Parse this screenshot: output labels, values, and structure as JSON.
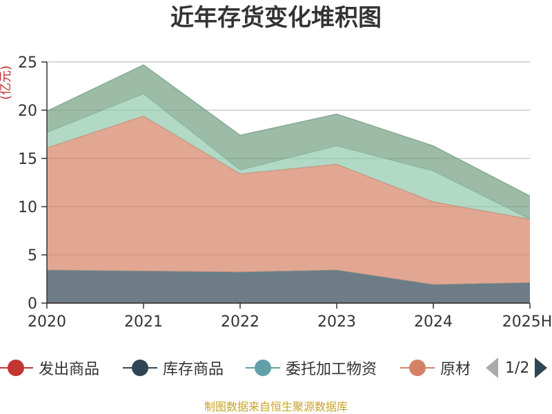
{
  "title": "近年存货变化堆积图",
  "unit": "(亿元)",
  "source": "制图数据来自恒生聚源数据库",
  "legend_page": "1/2",
  "chart_data": {
    "type": "area",
    "stacked": true,
    "title": "近年存货变化堆积图",
    "ylabel": "(亿元)",
    "categories": [
      "2020",
      "2021",
      "2022",
      "2023",
      "2024",
      "2025H"
    ],
    "ylim": [
      0,
      25
    ],
    "yticks": [
      0,
      5,
      10,
      15,
      20,
      25
    ],
    "grid": true,
    "legend_position": "bottom",
    "series": [
      {
        "name": "发出商品",
        "color": "#c23531",
        "values": [
          0,
          0,
          0,
          0,
          0,
          0
        ],
        "legend": true
      },
      {
        "name": "库存商品",
        "color": "#2f4554",
        "values": [
          3.4,
          3.3,
          3.2,
          3.4,
          1.9,
          2.1
        ],
        "legend": true
      },
      {
        "name": "委托加工物资",
        "color": "#61a0a8",
        "values": [
          0,
          0,
          0,
          0,
          0,
          0
        ],
        "legend": true
      },
      {
        "name": "原材",
        "color": "#d48265",
        "values": [
          12.7,
          16.1,
          10.2,
          11.0,
          8.6,
          6.6
        ],
        "legend": true
      },
      {
        "name": "",
        "color": "#91c7ae",
        "values": [
          1.6,
          2.3,
          0.4,
          1.9,
          3.2,
          0.0
        ],
        "legend": false
      },
      {
        "name": "",
        "color": "#749f83",
        "values": [
          2.2,
          3.0,
          3.6,
          3.3,
          2.6,
          2.4
        ],
        "legend": false
      }
    ]
  }
}
